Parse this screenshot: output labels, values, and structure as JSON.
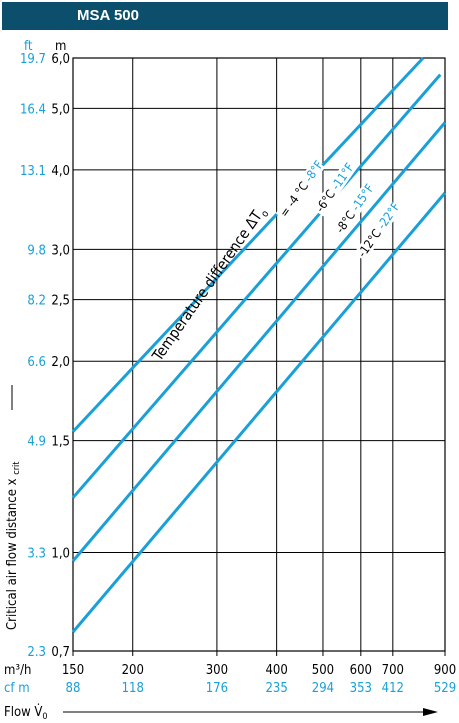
{
  "header": {
    "title": "MSA 500"
  },
  "colors": {
    "header_bg": "#0b4f6c",
    "accent": "#1aa0d8",
    "grid": "#000000"
  },
  "chart_data": {
    "type": "line",
    "y_units": {
      "ft": "ft",
      "m": "m"
    },
    "y_title": "Critical air flow distance x",
    "y_title_sub": "crit",
    "x_unit_metric": "m³/h",
    "x_unit_imperial": "cf m",
    "x_title": "Flow V̇",
    "x_title_sub": "0",
    "xlim": [
      150,
      900
    ],
    "ylim": [
      0.7,
      6.0
    ],
    "x_scale": "log",
    "y_scale": "log",
    "grid": true,
    "x_ticks": [
      {
        "value": 150,
        "label": "150",
        "imperial": "88"
      },
      {
        "value": 200,
        "label": "200",
        "imperial": "118"
      },
      {
        "value": 300,
        "label": "300",
        "imperial": "176"
      },
      {
        "value": 400,
        "label": "400",
        "imperial": "235"
      },
      {
        "value": 500,
        "label": "500",
        "imperial": "294"
      },
      {
        "value": 600,
        "label": "600",
        "imperial": "353"
      },
      {
        "value": 700,
        "label": "700",
        "imperial": "412"
      },
      {
        "value": 900,
        "label": "900",
        "imperial": "529"
      }
    ],
    "y_ticks": [
      {
        "value": 0.7,
        "label": "0,7",
        "imperial": "2.3"
      },
      {
        "value": 1.0,
        "label": "1,0",
        "imperial": "3.3"
      },
      {
        "value": 1.5,
        "label": "1,5",
        "imperial": "4.9"
      },
      {
        "value": 2.0,
        "label": "2,0",
        "imperial": "6.6"
      },
      {
        "value": 2.5,
        "label": "2,5",
        "imperial": "8.2"
      },
      {
        "value": 3.0,
        "label": "3,0",
        "imperial": "9.8"
      },
      {
        "value": 4.0,
        "label": "4,0",
        "imperial": "13.1"
      },
      {
        "value": 5.0,
        "label": "5,0",
        "imperial": "16.4"
      },
      {
        "value": 6.0,
        "label": "6,0",
        "imperial": "19.7"
      }
    ],
    "annotation": "Temperature difference  ΔT",
    "annotation_sub": "o",
    "series": [
      {
        "label_c": "= -4 °C",
        "label_f": "-8°F",
        "points": [
          [
            150,
            1.55
          ],
          [
            810,
            6.0
          ]
        ]
      },
      {
        "label_c": "-6°C",
        "label_f": "-11°F",
        "points": [
          [
            150,
            1.22
          ],
          [
            880,
            5.65
          ]
        ]
      },
      {
        "label_c": "-8°C",
        "label_f": "-15°F",
        "points": [
          [
            150,
            0.97
          ],
          [
            900,
            4.75
          ]
        ]
      },
      {
        "label_c": "-12°C",
        "label_f": "-22°F",
        "points": [
          [
            150,
            0.75
          ],
          [
            900,
            3.68
          ]
        ]
      }
    ]
  }
}
